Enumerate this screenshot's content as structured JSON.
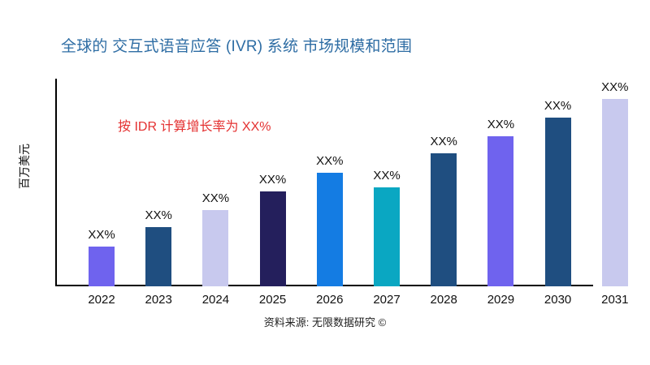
{
  "title": {
    "text": "全球的 交互式语音应答 (IVR) 系统 市场规模和范围",
    "color": "#2e6da4"
  },
  "annotation": {
    "text": "按 IDR 计算增长率为 XX%",
    "color": "#e43131"
  },
  "source": "资料来源: 无限数据研究 ©",
  "chart_data": {
    "type": "bar",
    "title": "全球的 交互式语音应答 (IVR) 系统 市场规模和范围",
    "xlabel": "",
    "ylabel": "百万美元",
    "categories": [
      "2022",
      "2023",
      "2024",
      "2025",
      "2026",
      "2027",
      "2028",
      "2029",
      "2030",
      "2031"
    ],
    "bar_labels": [
      "XX%",
      "XX%",
      "XX%",
      "XX%",
      "XX%",
      "XX%",
      "XX%",
      "XX%",
      "XX%",
      "XX%"
    ],
    "relative_heights_pct": [
      19.1,
      28.5,
      36.7,
      45.7,
      54.7,
      47.7,
      64.1,
      72.3,
      81.3,
      90.2
    ],
    "bar_colors": [
      "#6f63ee",
      "#1f4e80",
      "#c8c9ee",
      "#241f5c",
      "#147ce3",
      "#0aa7c2",
      "#1f4e80",
      "#6f63ee",
      "#1f4e80",
      "#c8c9ee"
    ],
    "y_ticks_visible": false,
    "grid": false,
    "legend": false,
    "annotation": "按 IDR 计算增长率为 XX%"
  }
}
